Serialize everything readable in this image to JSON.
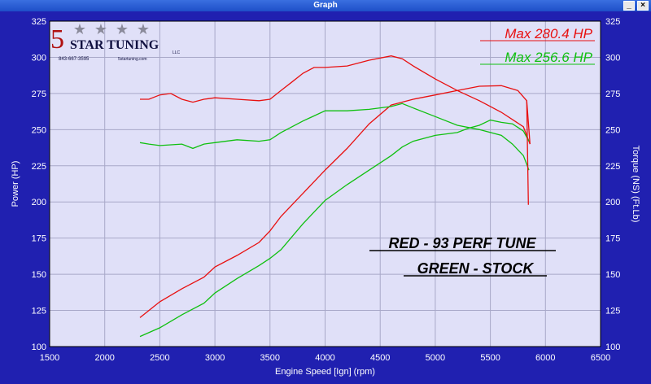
{
  "window": {
    "title": "Graph",
    "min_glyph": "_",
    "close_glyph": "×"
  },
  "colors": {
    "plot_bg": "#e0e0f8",
    "frame_bg": "#2020b0",
    "grid": "#a8a8c8",
    "axis_text": "#ffffff",
    "red": "#e81010",
    "green": "#10c010"
  },
  "logo": {
    "number": "5",
    "text": "STAR TUNING",
    "llc": "LLC",
    "phone": "843-667-3595",
    "web": "5startuning.com"
  },
  "chart_data": {
    "type": "line",
    "xlabel": "Engine Speed [Ign] (rpm)",
    "ylabel_left": "Power (HP)",
    "ylabel_right": "Torque (NS) (Ft.Lb)",
    "xlim": [
      1500,
      6500
    ],
    "ylim": [
      100,
      325
    ],
    "x_ticks": [
      1500,
      2000,
      2500,
      3000,
      3500,
      4000,
      4500,
      5000,
      5500,
      6000,
      6500
    ],
    "y_ticks": [
      100,
      125,
      150,
      175,
      200,
      225,
      250,
      275,
      300,
      325
    ],
    "grid": true,
    "legend_text": [
      "Max 280.4 HP",
      "Max 256.6 HP"
    ],
    "annotations": [
      "RED - 93 PERF TUNE",
      "GREEN - STOCK"
    ],
    "series": [
      {
        "name": "RED - 93 PERF TUNE",
        "kind": "power",
        "color": "red",
        "points": [
          [
            2320,
            120
          ],
          [
            2500,
            131
          ],
          [
            2700,
            140
          ],
          [
            2900,
            148
          ],
          [
            3000,
            155
          ],
          [
            3200,
            163
          ],
          [
            3400,
            172
          ],
          [
            3500,
            180
          ],
          [
            3600,
            190
          ],
          [
            3800,
            206
          ],
          [
            4000,
            222
          ],
          [
            4200,
            237
          ],
          [
            4400,
            254
          ],
          [
            4600,
            267
          ],
          [
            4800,
            271
          ],
          [
            5000,
            274
          ],
          [
            5200,
            277
          ],
          [
            5400,
            280
          ],
          [
            5600,
            280.4
          ],
          [
            5750,
            277
          ],
          [
            5830,
            270
          ],
          [
            5860,
            240
          ]
        ]
      },
      {
        "name": "RED - 93 PERF TUNE",
        "kind": "torque",
        "color": "red",
        "points": [
          [
            2320,
            271
          ],
          [
            2400,
            271
          ],
          [
            2500,
            274
          ],
          [
            2600,
            275
          ],
          [
            2700,
            271
          ],
          [
            2800,
            269
          ],
          [
            2900,
            271
          ],
          [
            3000,
            272
          ],
          [
            3200,
            271
          ],
          [
            3400,
            270
          ],
          [
            3500,
            271
          ],
          [
            3600,
            277
          ],
          [
            3700,
            283
          ],
          [
            3800,
            289
          ],
          [
            3900,
            293
          ],
          [
            4000,
            293
          ],
          [
            4200,
            294
          ],
          [
            4400,
            298
          ],
          [
            4600,
            301
          ],
          [
            4700,
            299
          ],
          [
            4800,
            294
          ],
          [
            5000,
            285
          ],
          [
            5200,
            277
          ],
          [
            5400,
            270
          ],
          [
            5600,
            262
          ],
          [
            5700,
            257
          ],
          [
            5800,
            252
          ],
          [
            5860,
            240
          ]
        ]
      },
      {
        "name": "GREEN - STOCK",
        "kind": "power",
        "color": "green",
        "points": [
          [
            2320,
            107
          ],
          [
            2500,
            113
          ],
          [
            2700,
            122
          ],
          [
            2900,
            130
          ],
          [
            3000,
            137
          ],
          [
            3200,
            147
          ],
          [
            3400,
            156
          ],
          [
            3500,
            161
          ],
          [
            3600,
            167
          ],
          [
            3800,
            185
          ],
          [
            4000,
            201
          ],
          [
            4200,
            212
          ],
          [
            4400,
            222
          ],
          [
            4600,
            232
          ],
          [
            4700,
            238
          ],
          [
            4800,
            242
          ],
          [
            5000,
            246
          ],
          [
            5200,
            248
          ],
          [
            5300,
            251
          ],
          [
            5400,
            253
          ],
          [
            5500,
            256.6
          ],
          [
            5600,
            255
          ],
          [
            5700,
            254
          ],
          [
            5800,
            249
          ],
          [
            5850,
            242
          ]
        ]
      },
      {
        "name": "GREEN - STOCK",
        "kind": "torque",
        "color": "green",
        "points": [
          [
            2320,
            241
          ],
          [
            2400,
            240
          ],
          [
            2500,
            239
          ],
          [
            2700,
            240
          ],
          [
            2800,
            237
          ],
          [
            2900,
            240
          ],
          [
            3000,
            241
          ],
          [
            3200,
            243
          ],
          [
            3400,
            242
          ],
          [
            3500,
            243
          ],
          [
            3600,
            248
          ],
          [
            3800,
            256
          ],
          [
            4000,
            263
          ],
          [
            4200,
            263
          ],
          [
            4400,
            264
          ],
          [
            4600,
            266
          ],
          [
            4700,
            268
          ],
          [
            4800,
            265
          ],
          [
            5000,
            259
          ],
          [
            5200,
            253
          ],
          [
            5400,
            250
          ],
          [
            5600,
            246
          ],
          [
            5700,
            240
          ],
          [
            5800,
            232
          ],
          [
            5850,
            222
          ]
        ]
      }
    ]
  }
}
